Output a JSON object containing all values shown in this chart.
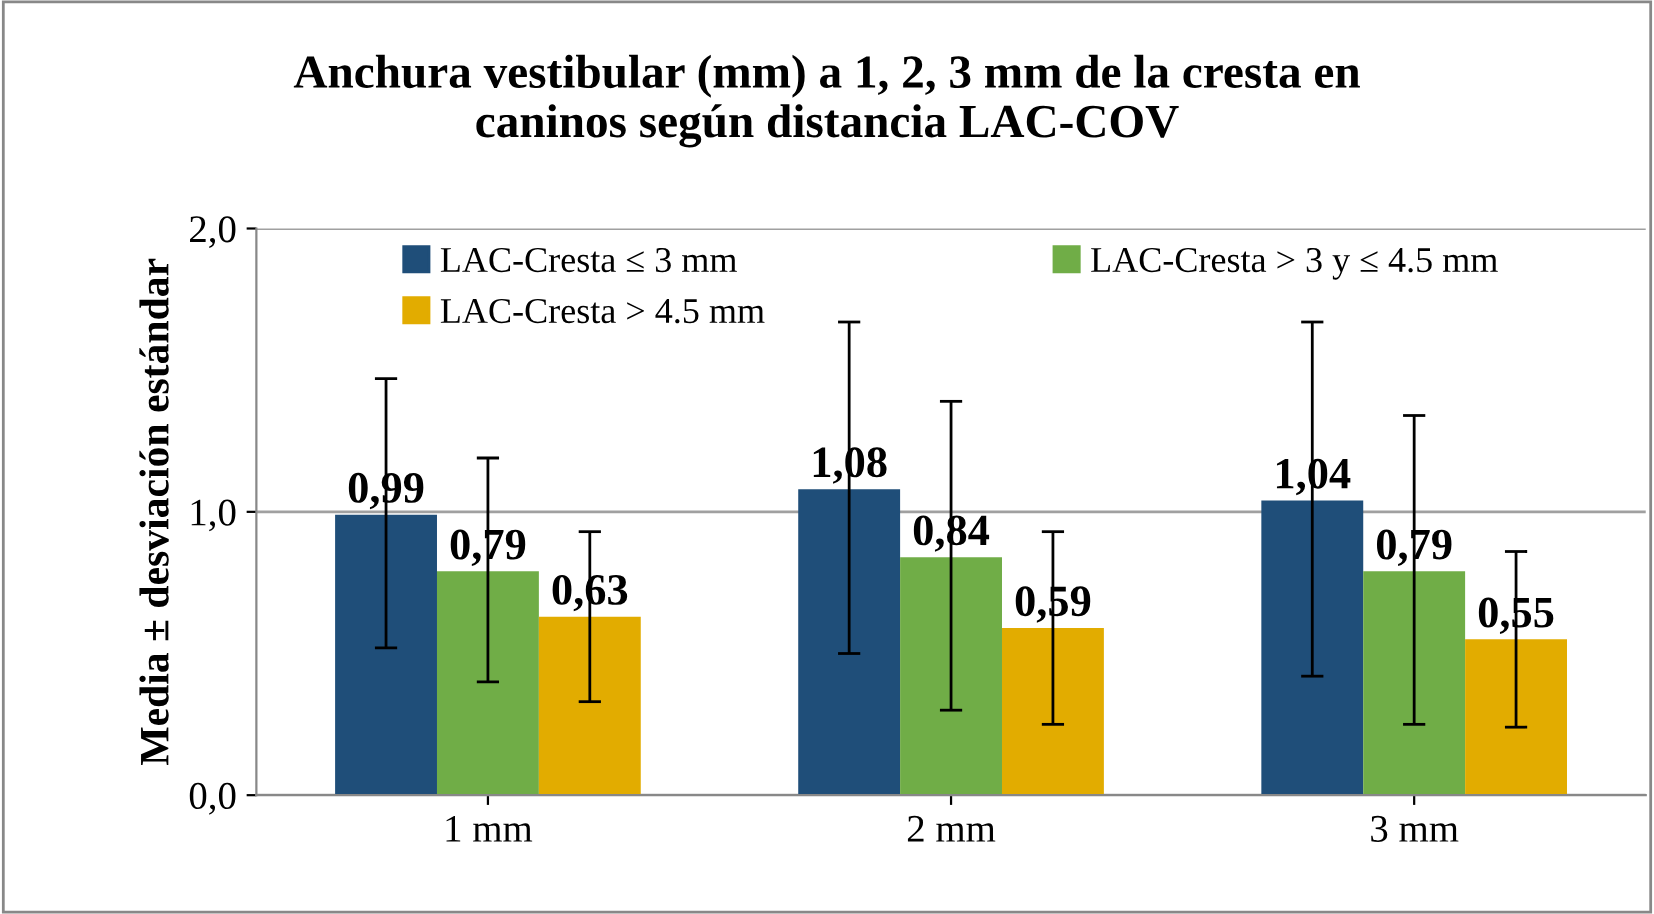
{
  "chart_data": {
    "type": "bar",
    "title": "Anchura vestibular (mm) a 1, 2, 3 mm de la cresta en\ncaninos según distancia LAC-COV",
    "ylabel": "Media ± desviación estándar",
    "categories": [
      "1 mm",
      "2 mm",
      "3 mm"
    ],
    "series": [
      {
        "name": "LAC-Cresta ≤ 3 mm",
        "color": "#1f4e79",
        "values": [
          0.99,
          1.08,
          1.04
        ],
        "value_labels": [
          "0,99",
          "1,08",
          "1,04"
        ],
        "errors": [
          [
            0.52,
            1.47
          ],
          [
            0.5,
            1.67
          ],
          [
            0.42,
            1.67
          ]
        ]
      },
      {
        "name": "LAC-Cresta > 3 y ≤ 4.5 mm",
        "color": "#70ad47",
        "values": [
          0.79,
          0.84,
          0.79
        ],
        "value_labels": [
          "0,79",
          "0,84",
          "0,79"
        ],
        "errors": [
          [
            0.4,
            1.19
          ],
          [
            0.3,
            1.39
          ],
          [
            0.25,
            1.34
          ]
        ]
      },
      {
        "name": "LAC-Cresta > 4.5 mm",
        "color": "#e2ac00",
        "values": [
          0.63,
          0.59,
          0.55
        ],
        "value_labels": [
          "0,63",
          "0,59",
          "0,55"
        ],
        "errors": [
          [
            0.33,
            0.93
          ],
          [
            0.25,
            0.93
          ],
          [
            0.24,
            0.86
          ]
        ]
      }
    ],
    "ylim": [
      0,
      2
    ],
    "yticks": [
      {
        "value": 0,
        "label": "0,0"
      },
      {
        "value": 1,
        "label": "1,0"
      },
      {
        "value": 2,
        "label": "2,0"
      }
    ],
    "grid": "y",
    "legend": "top"
  }
}
